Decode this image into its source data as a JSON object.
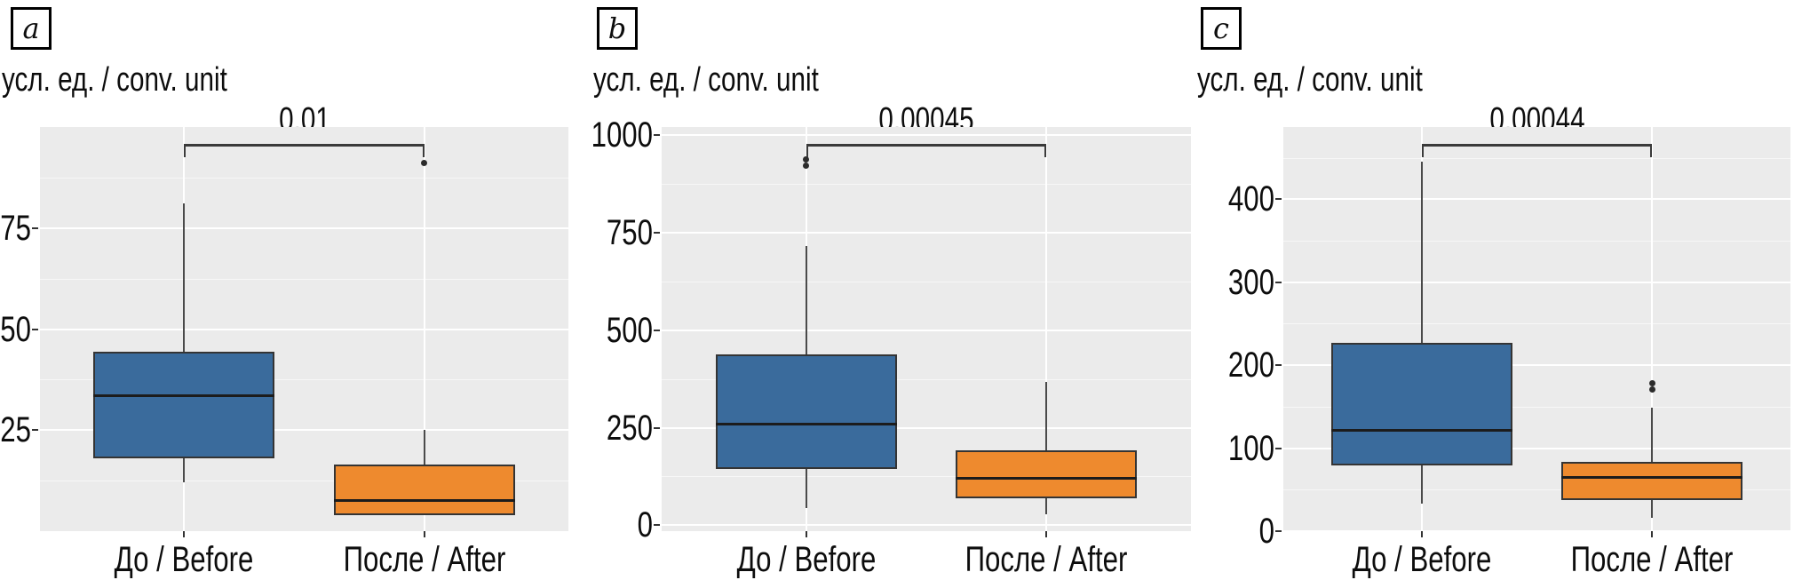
{
  "colors": {
    "before": "#3a6b9c",
    "after": "#ee8a2e",
    "box_edge": "#343434",
    "median": "#1c1c1c",
    "whisker": "#4a4a4a",
    "plot_background": "#ebebeb",
    "grid_major": "#ffffff",
    "text": "#0d0d0d"
  },
  "chart_data": [
    {
      "type": "box",
      "panel": "a",
      "axis_title": "усл. ед. / conv. unit",
      "p_value_label": "0,01",
      "categories": [
        "До / Before",
        "После / After"
      ],
      "yticks": [
        25,
        50,
        75
      ],
      "ylim": [
        0,
        100
      ],
      "grid": true,
      "legend": "none",
      "series": [
        {
          "name": "До / Before",
          "color_key": "before",
          "whisker_low": 12,
          "q1": 18,
          "median": 33.5,
          "q3": 44.5,
          "whisker_high": 81,
          "outliers": []
        },
        {
          "name": "После / After",
          "color_key": "after",
          "whisker_low": 4,
          "q1": 4,
          "median": 7.5,
          "q3": 16.5,
          "whisker_high": 25,
          "outliers": [
            91
          ]
        }
      ]
    },
    {
      "type": "box",
      "panel": "b",
      "axis_title": "усл. ед. / conv. unit",
      "p_value_label": "0,00045",
      "categories": [
        "До / Before",
        "После / After"
      ],
      "yticks": [
        0,
        250,
        500,
        750,
        1000
      ],
      "ylim": [
        -15,
        1020
      ],
      "grid": true,
      "legend": "none",
      "series": [
        {
          "name": "До / Before",
          "color_key": "before",
          "whisker_low": 45,
          "q1": 144,
          "median": 260,
          "q3": 437,
          "whisker_high": 715,
          "outliers": [
            920,
            936
          ]
        },
        {
          "name": "После / After",
          "color_key": "after",
          "whisker_low": 28,
          "q1": 69,
          "median": 120,
          "q3": 191,
          "whisker_high": 368,
          "outliers": []
        }
      ]
    },
    {
      "type": "box",
      "panel": "c",
      "axis_title": "усл. ед. / conv. unit",
      "p_value_label": "0,00044",
      "categories": [
        "До / Before",
        "После / After"
      ],
      "yticks": [
        0,
        100,
        200,
        300,
        400
      ],
      "ylim": [
        0,
        487
      ],
      "grid": true,
      "legend": "none",
      "series": [
        {
          "name": "До / Before",
          "color_key": "before",
          "whisker_low": 33,
          "q1": 79,
          "median": 121,
          "q3": 227,
          "whisker_high": 445,
          "outliers": []
        },
        {
          "name": "После / After",
          "color_key": "after",
          "whisker_low": 16,
          "q1": 37,
          "median": 65,
          "q3": 84,
          "whisker_high": 149,
          "outliers": [
            171,
            178
          ]
        }
      ]
    }
  ]
}
